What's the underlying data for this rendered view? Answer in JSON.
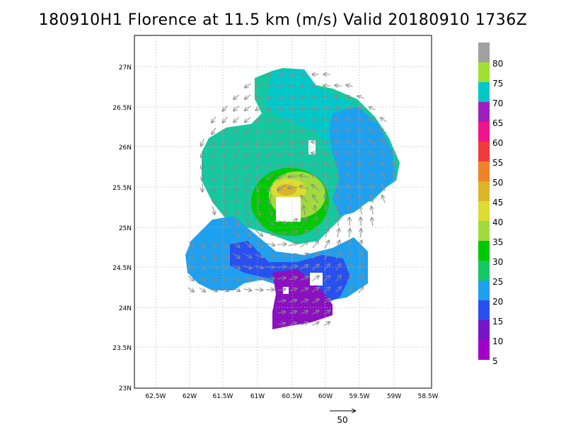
{
  "title": "180910H1 Florence at 11.5 km (m/s) Valid 20180910  1736Z",
  "lat_ticks": [
    "27N",
    "26.5N",
    "26N",
    "25.5N",
    "25N",
    "24.5N",
    "24N",
    "23.5N",
    "23N"
  ],
  "lon_ticks": [
    "62.5W",
    "62W",
    "61.5W",
    "61W",
    "60.5W",
    "60W",
    "59.5W",
    "59W",
    "58.5W"
  ],
  "colorbar": {
    "labels": [
      "80",
      "75",
      "70",
      "65",
      "60",
      "55",
      "50",
      "45",
      "40",
      "35",
      "30",
      "25",
      "20",
      "15",
      "10",
      "5"
    ],
    "colors": [
      "#a0a0a0",
      "#a0e030",
      "#00c8c8",
      "#9f1fc0",
      "#f0148c",
      "#f03c3c",
      "#f08228",
      "#dcb428",
      "#dcdc32",
      "#a0dc3c",
      "#00c800",
      "#14c864",
      "#1ea0f0",
      "#2850f0",
      "#7814c8",
      "#a000c8"
    ]
  },
  "reference_vector": {
    "label": "50"
  }
}
